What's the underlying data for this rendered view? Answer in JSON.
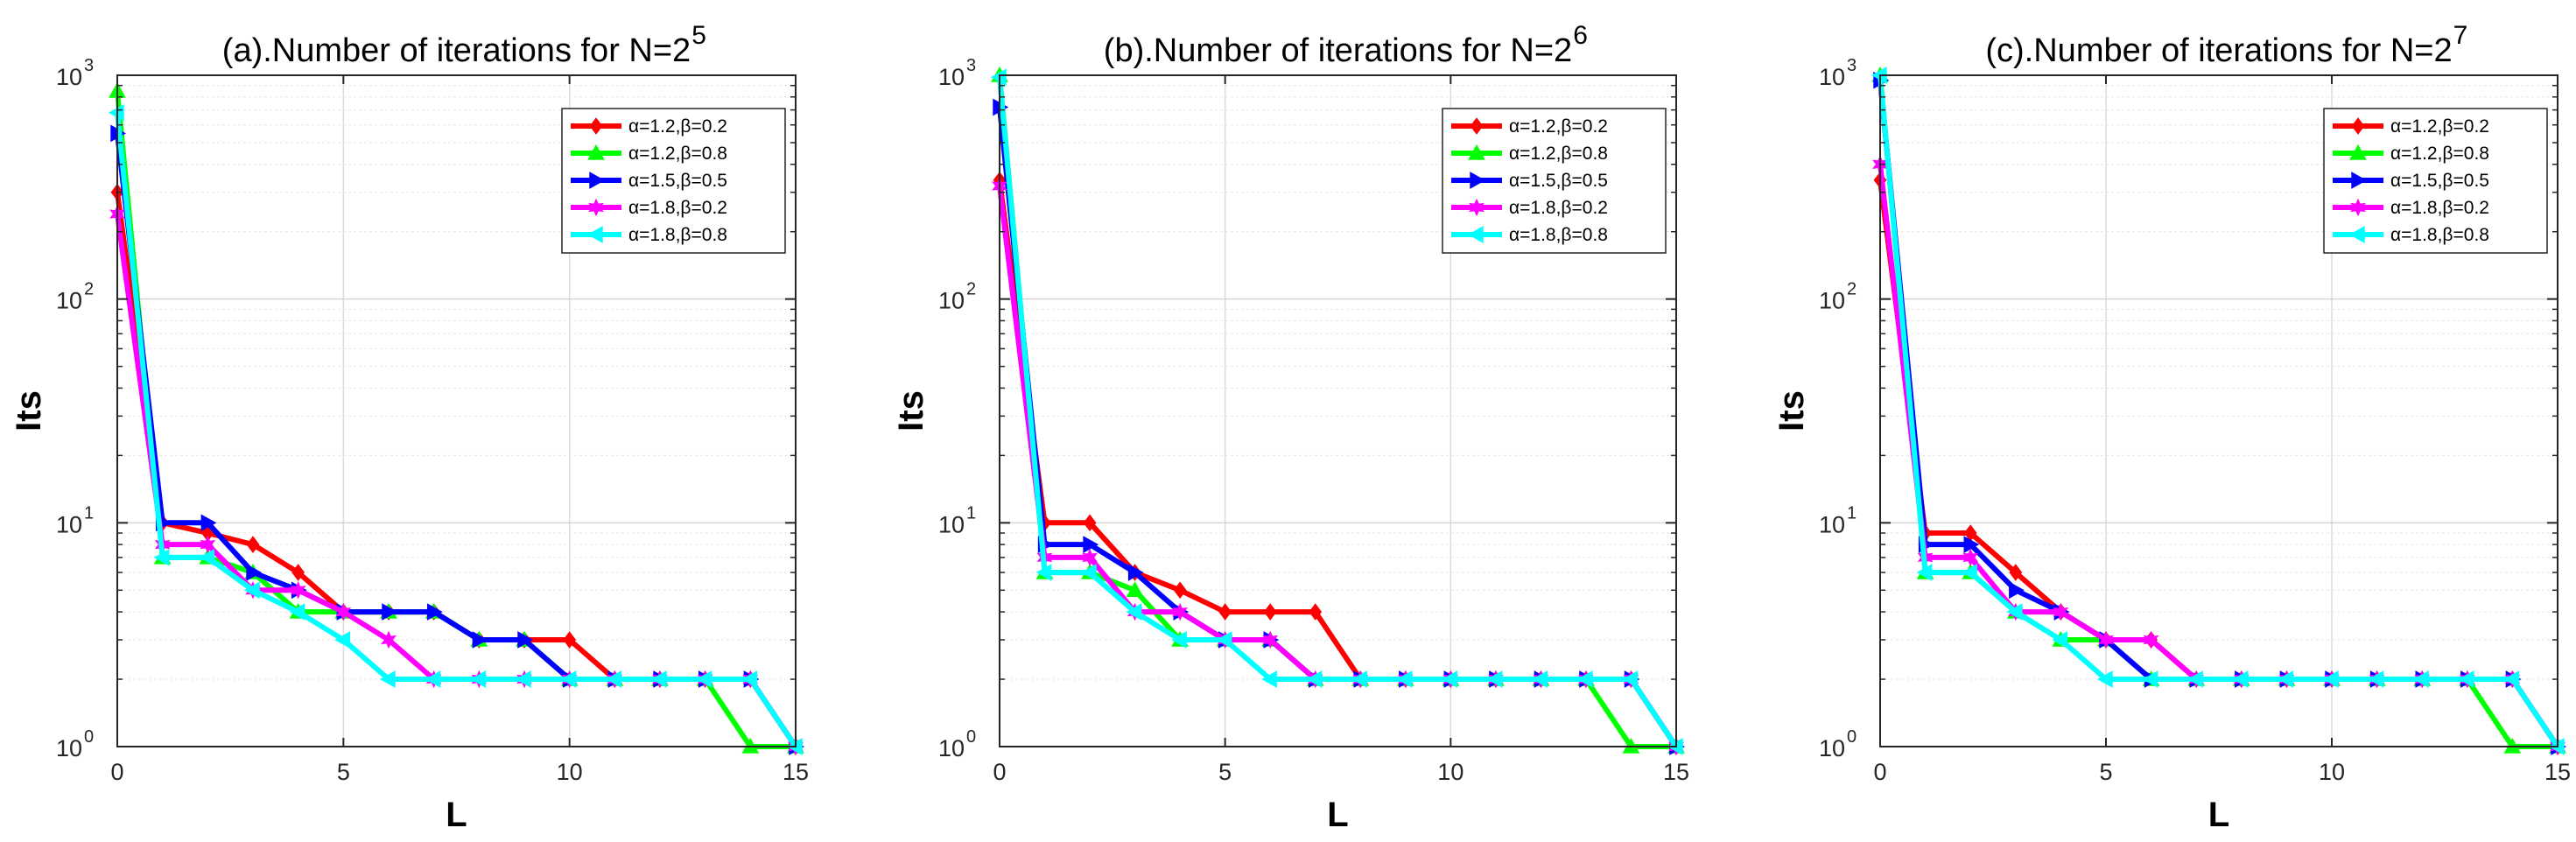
{
  "chart_data": [
    {
      "type": "line",
      "title": "(a).Number of iterations for N=2",
      "title_exp": "5",
      "xlabel": "L",
      "ylabel": "Its",
      "yscale": "log",
      "xlim": [
        0,
        15
      ],
      "ylim": [
        1,
        1000
      ],
      "xticks": [
        0,
        5,
        10,
        15
      ],
      "yticks": [
        1,
        10,
        100,
        1000
      ],
      "ytick_labels": [
        [
          "10",
          "0"
        ],
        [
          "10",
          "1"
        ],
        [
          "10",
          "2"
        ],
        [
          "10",
          "3"
        ]
      ],
      "grid": true,
      "legend_position": "top-right",
      "x": [
        0,
        1,
        2,
        3,
        4,
        5,
        6,
        7,
        8,
        9,
        10,
        11,
        12,
        13,
        14,
        15
      ],
      "series": [
        {
          "name": "α=1.2,β=0.2",
          "color": "#ff0000",
          "marker": "diamond",
          "values": [
            300,
            10,
            9,
            8,
            6,
            4,
            4,
            4,
            3,
            3,
            3,
            2,
            2,
            2,
            2,
            1
          ]
        },
        {
          "name": "α=1.2,β=0.8",
          "color": "#00ff00",
          "marker": "triangle-up",
          "values": [
            850,
            7,
            7,
            6,
            4,
            4,
            4,
            4,
            3,
            3,
            2,
            2,
            2,
            2,
            1,
            1
          ]
        },
        {
          "name": "α=1.5,β=0.5",
          "color": "#0000ff",
          "marker": "triangle-right",
          "values": [
            550,
            10,
            10,
            6,
            5,
            4,
            4,
            4,
            3,
            3,
            2,
            2,
            2,
            2,
            2,
            1
          ]
        },
        {
          "name": "α=1.8,β=0.2",
          "color": "#ff00ff",
          "marker": "hexagram",
          "values": [
            240,
            8,
            8,
            5,
            5,
            4,
            3,
            2,
            2,
            2,
            2,
            2,
            2,
            2,
            2,
            1
          ]
        },
        {
          "name": "α=1.8,β=0.8",
          "color": "#00ffff",
          "marker": "triangle-left",
          "values": [
            680,
            7,
            7,
            5,
            4,
            3,
            2,
            2,
            2,
            2,
            2,
            2,
            2,
            2,
            2,
            1
          ]
        }
      ]
    },
    {
      "type": "line",
      "title": "(b).Number of iterations for N=2",
      "title_exp": "6",
      "xlabel": "L",
      "ylabel": "Its",
      "yscale": "log",
      "xlim": [
        0,
        15
      ],
      "ylim": [
        1,
        1000
      ],
      "xticks": [
        0,
        5,
        10,
        15
      ],
      "yticks": [
        1,
        10,
        100,
        1000
      ],
      "ytick_labels": [
        [
          "10",
          "0"
        ],
        [
          "10",
          "1"
        ],
        [
          "10",
          "2"
        ],
        [
          "10",
          "3"
        ]
      ],
      "grid": true,
      "legend_position": "top-right",
      "x": [
        0,
        1,
        2,
        3,
        4,
        5,
        6,
        7,
        8,
        9,
        10,
        11,
        12,
        13,
        14,
        15
      ],
      "series": [
        {
          "name": "α=1.2,β=0.2",
          "color": "#ff0000",
          "marker": "diamond",
          "values": [
            340,
            10,
            10,
            6,
            5,
            4,
            4,
            4,
            2,
            2,
            2,
            2,
            2,
            2,
            2,
            1
          ]
        },
        {
          "name": "α=1.2,β=0.8",
          "color": "#00ff00",
          "marker": "triangle-up",
          "values": [
            1000,
            6,
            6,
            5,
            3,
            3,
            3,
            2,
            2,
            2,
            2,
            2,
            2,
            2,
            1,
            1
          ]
        },
        {
          "name": "α=1.5,β=0.5",
          "color": "#0000ff",
          "marker": "triangle-right",
          "values": [
            720,
            8,
            8,
            6,
            4,
            3,
            3,
            2,
            2,
            2,
            2,
            2,
            2,
            2,
            2,
            1
          ]
        },
        {
          "name": "α=1.8,β=0.2",
          "color": "#ff00ff",
          "marker": "hexagram",
          "values": [
            320,
            7,
            7,
            4,
            4,
            3,
            3,
            2,
            2,
            2,
            2,
            2,
            2,
            2,
            2,
            1
          ]
        },
        {
          "name": "α=1.8,β=0.8",
          "color": "#00ffff",
          "marker": "triangle-left",
          "values": [
            980,
            6,
            6,
            4,
            3,
            3,
            2,
            2,
            2,
            2,
            2,
            2,
            2,
            2,
            2,
            1
          ]
        }
      ]
    },
    {
      "type": "line",
      "title": "(c).Number of iterations for N=2",
      "title_exp": "7",
      "xlabel": "L",
      "ylabel": "Its",
      "yscale": "log",
      "xlim": [
        0,
        15
      ],
      "ylim": [
        1,
        1000
      ],
      "xticks": [
        0,
        5,
        10,
        15
      ],
      "yticks": [
        1,
        10,
        100,
        1000
      ],
      "ytick_labels": [
        [
          "10",
          "0"
        ],
        [
          "10",
          "1"
        ],
        [
          "10",
          "2"
        ],
        [
          "10",
          "3"
        ]
      ],
      "grid": true,
      "legend_position": "top-right",
      "x": [
        0,
        1,
        2,
        3,
        4,
        5,
        6,
        7,
        8,
        9,
        10,
        11,
        12,
        13,
        14,
        15
      ],
      "series": [
        {
          "name": "α=1.2,β=0.2",
          "color": "#ff0000",
          "marker": "diamond",
          "values": [
            340,
            9,
            9,
            6,
            4,
            3,
            3,
            2,
            2,
            2,
            2,
            2,
            2,
            2,
            2,
            1
          ]
        },
        {
          "name": "α=1.2,β=0.8",
          "color": "#00ff00",
          "marker": "triangle-up",
          "values": [
            1000,
            6,
            6,
            4,
            3,
            3,
            2,
            2,
            2,
            2,
            2,
            2,
            2,
            2,
            1,
            1
          ]
        },
        {
          "name": "α=1.5,β=0.5",
          "color": "#0000ff",
          "marker": "triangle-right",
          "values": [
            950,
            8,
            8,
            5,
            4,
            3,
            2,
            2,
            2,
            2,
            2,
            2,
            2,
            2,
            2,
            1
          ]
        },
        {
          "name": "α=1.8,β=0.2",
          "color": "#ff00ff",
          "marker": "hexagram",
          "values": [
            400,
            7,
            7,
            4,
            4,
            3,
            3,
            2,
            2,
            2,
            2,
            2,
            2,
            2,
            2,
            1
          ]
        },
        {
          "name": "α=1.8,β=0.8",
          "color": "#00ffff",
          "marker": "triangle-left",
          "values": [
            1000,
            6,
            6,
            4,
            3,
            2,
            2,
            2,
            2,
            2,
            2,
            2,
            2,
            2,
            2,
            1
          ]
        }
      ]
    }
  ]
}
